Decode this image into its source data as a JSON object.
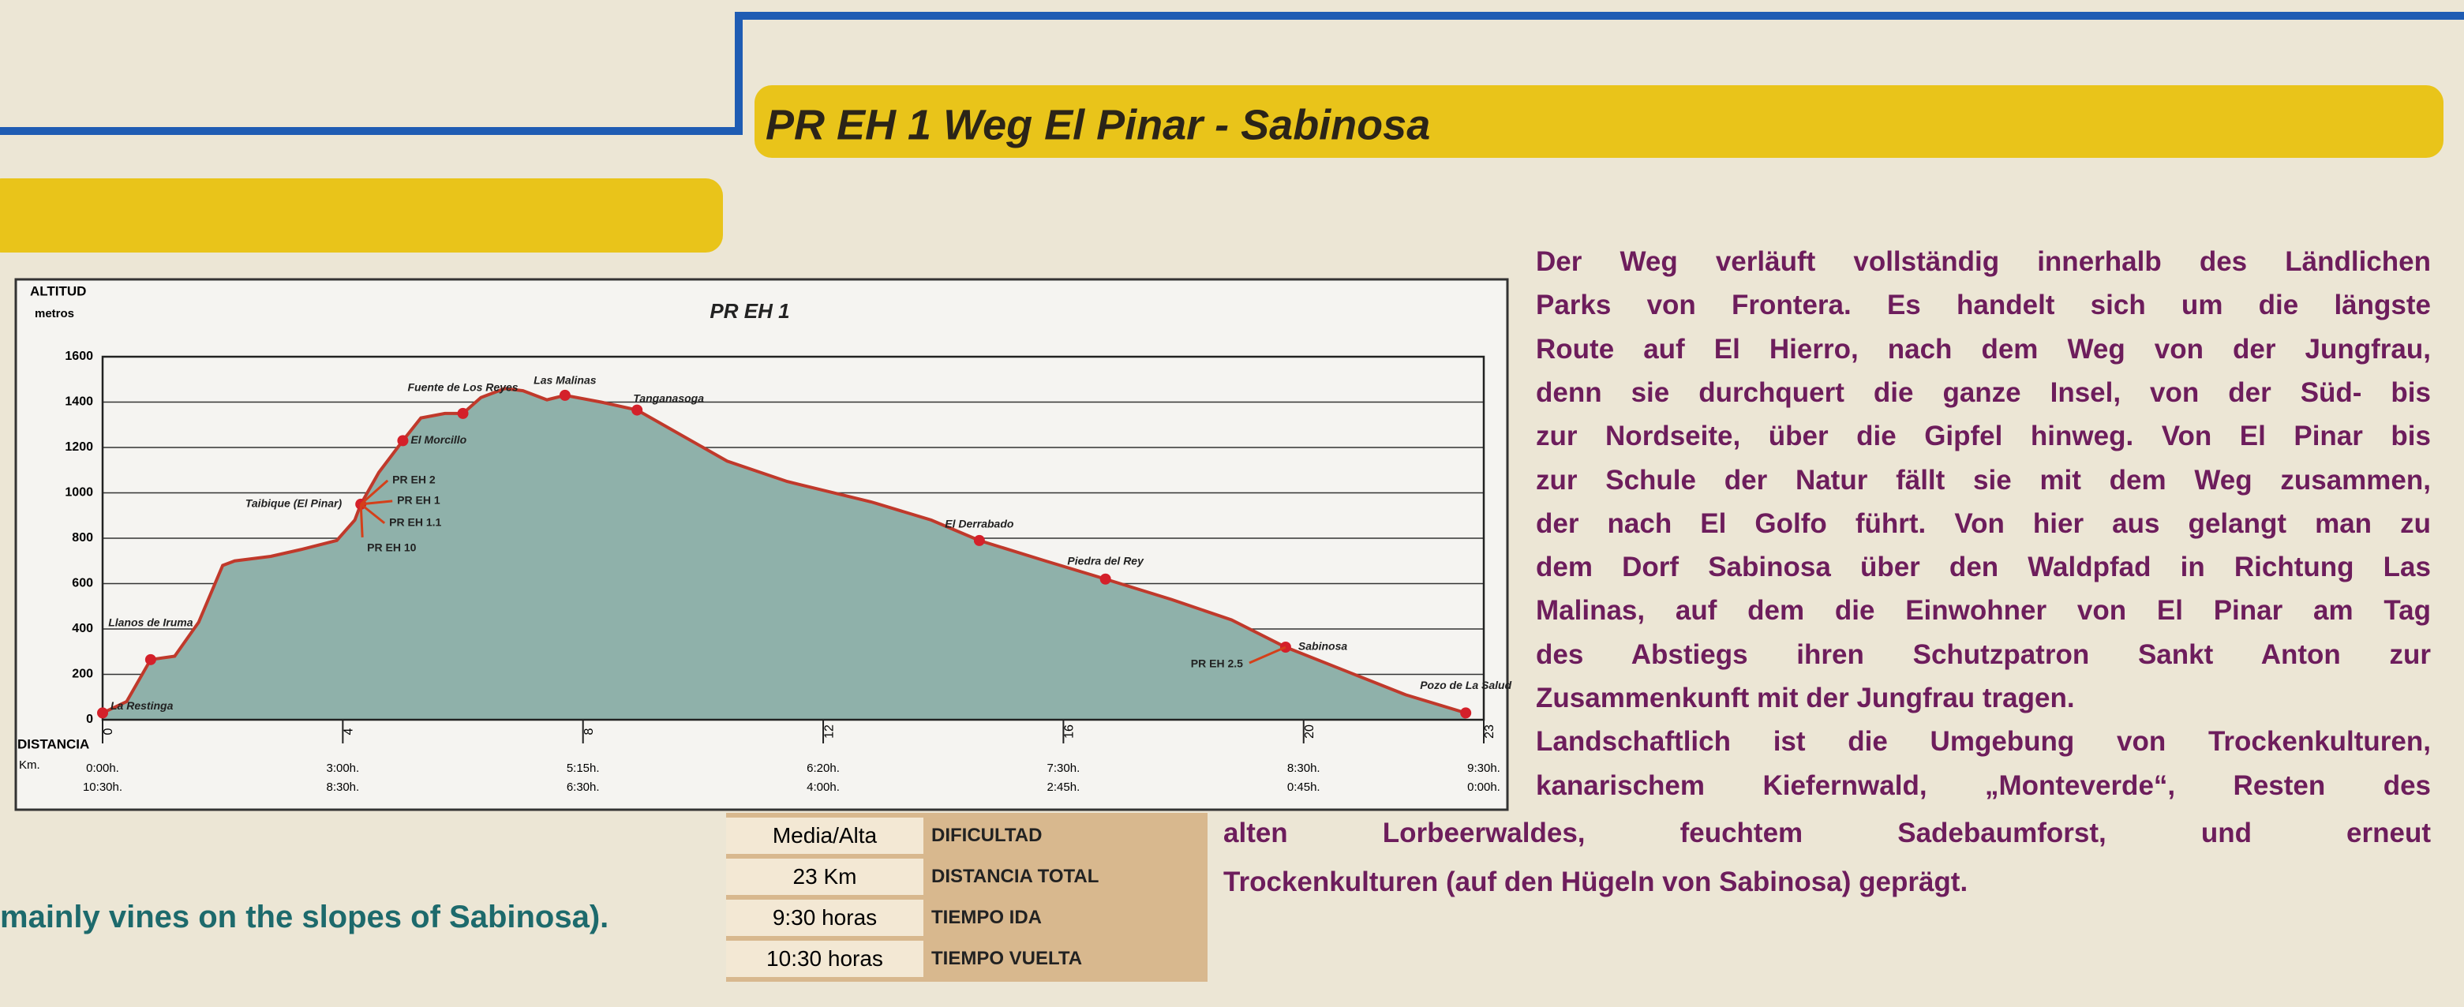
{
  "header": {
    "title": "PR EH 1 Weg El Pinar - Sabinosa"
  },
  "chart_data": {
    "type": "area",
    "title": "PR EH 1",
    "y_label": "ALTITUD",
    "y_unit": "metros",
    "x_label": "DISTANCIA",
    "x_unit": "Km.",
    "x": [
      0,
      0.4,
      0.8,
      1.2,
      1.6,
      2.0,
      2.2,
      2.8,
      3.3,
      3.9,
      4.2,
      4.3,
      4.6,
      5.0,
      5.3,
      5.7,
      6.0,
      6.3,
      6.7,
      7.0,
      7.4,
      7.7,
      8.3,
      8.9,
      9.6,
      10.4,
      11.4,
      12.8,
      13.8,
      14.6,
      15.7,
      16.7,
      17.8,
      18.8,
      19.7,
      20.7,
      21.7,
      22.7
    ],
    "values": [
      30,
      80,
      265,
      280,
      430,
      680,
      700,
      720,
      750,
      790,
      880,
      950,
      1090,
      1230,
      1330,
      1350,
      1350,
      1420,
      1460,
      1450,
      1410,
      1430,
      1400,
      1365,
      1260,
      1140,
      1050,
      960,
      880,
      790,
      700,
      620,
      530,
      440,
      320,
      215,
      110,
      30
    ],
    "color": "#8fb1aa",
    "line_color": "#c0392b",
    "xlim": [
      0,
      23
    ],
    "xticks": [
      0,
      4,
      8,
      12,
      16,
      20,
      23
    ],
    "ylim": [
      0,
      1600
    ],
    "yticks": [
      0,
      200,
      400,
      600,
      800,
      1000,
      1200,
      1400,
      1600
    ],
    "grid": true,
    "time_ida": [
      "0:00h.",
      "3:00h.",
      "5:15h.",
      "6:20h.",
      "7:30h.",
      "8:30h.",
      "9:30h."
    ],
    "time_vuelta": [
      "10:30h.",
      "8:30h.",
      "6:30h.",
      "4:00h.",
      "2:45h.",
      "0:45h.",
      "0:00h."
    ],
    "places": [
      {
        "name": "La Restinga",
        "x": 0,
        "y": 30
      },
      {
        "name": "Llanos de Iruma",
        "x": 0.8,
        "y": 265
      },
      {
        "name": "Taibique (El Pinar)",
        "x": 4.3,
        "y": 950
      },
      {
        "name": "El Morcillo",
        "x": 5.0,
        "y": 1230
      },
      {
        "name": "Fuente de Los Reyes",
        "x": 6.0,
        "y": 1350
      },
      {
        "name": "Las Malinas",
        "x": 7.7,
        "y": 1430
      },
      {
        "name": "Tanganasoga",
        "x": 8.9,
        "y": 1365
      },
      {
        "name": "El Derrabado",
        "x": 14.6,
        "y": 790
      },
      {
        "name": "Piedra del Rey",
        "x": 16.7,
        "y": 620
      },
      {
        "name": "Sabinosa",
        "x": 19.7,
        "y": 320
      },
      {
        "name": "Pozo de La Salud",
        "x": 22.7,
        "y": 30
      }
    ],
    "branches": [
      "PR EH 2",
      "PR EH 1",
      "PR EH 1.1",
      "PR EH 10"
    ],
    "branch_side": "PR EH 2.5"
  },
  "info_table": {
    "rows": [
      [
        "Media/Alta",
        "DIFICULTAD"
      ],
      [
        "23 Km",
        "DISTANCIA TOTAL"
      ],
      [
        "9:30 horas",
        "TIEMPO IDA"
      ],
      [
        "10:30 horas",
        "TIEMPO VUELTA"
      ]
    ]
  },
  "description": {
    "lines": [
      "Der Weg verläuft vollständig innerhalb des Ländlichen",
      "Parks von Frontera. Es handelt sich um die längste",
      "Route auf El Hierro, nach dem Weg von der Jungfrau,",
      "denn sie durchquert die ganze Insel, von der Süd- bis",
      "zur Nordseite, über die Gipfel hinweg. Von El Pinar bis",
      "zur Schule der Natur fällt sie mit dem Weg zusammen,",
      "der nach El Golfo führt. Von hier aus gelangt man zu",
      "dem Dorf Sabinosa über den Waldpfad in Richtung Las",
      "Malinas, auf dem die Einwohner von El Pinar am Tag",
      "des Abstiegs ihren Schutzpatron Sankt Anton zur",
      "Zusammenkunft mit der Jungfrau tragen.",
      "Landschaftlich ist die Umgebung von Trockenkulturen,",
      "kanarischem Kiefernwald, „Monteverde“, Resten des",
      "alten Lorbeerwaldes, feuchtem Sadebaumforst, und erneut",
      "Trockenkulturen (auf den Hügeln von Sabinosa) geprägt."
    ]
  },
  "english_fragment": "mainly vines on the slopes of Sabinosa)."
}
